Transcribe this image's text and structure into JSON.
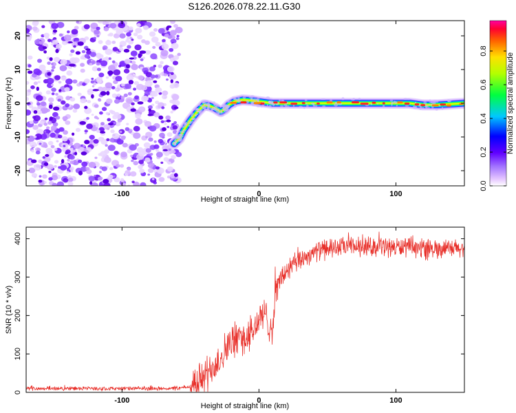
{
  "title": "S126.2026.078.22.11.G30",
  "chart_data": [
    {
      "id": "spectrogram",
      "type": "heatmap",
      "xlabel": "Height of straight line (km)",
      "ylabel": "Frequency (Hz)",
      "xlim": [
        -170,
        150
      ],
      "ylim": [
        -24.5,
        24.5
      ],
      "xticks": [
        -100,
        0,
        100
      ],
      "yticks": [
        -20,
        -10,
        0,
        10,
        20
      ],
      "noise_region_x": [
        -170,
        -58
      ],
      "ridge": {
        "x": [
          -62,
          -58,
          -55,
          -50,
          -45,
          -40,
          -36,
          -32,
          -28,
          -25,
          -22,
          -18,
          -12,
          -5,
          0,
          10,
          30,
          60,
          90,
          110,
          120,
          130,
          150
        ],
        "freq": [
          -12,
          -10.5,
          -8,
          -5,
          -2.5,
          -0.5,
          -0.8,
          -1.5,
          -2.5,
          -1.8,
          -0.5,
          0.5,
          1.0,
          0.8,
          0.5,
          0,
          0,
          0,
          0,
          0,
          -0.5,
          -0.5,
          0
        ]
      }
    },
    {
      "id": "snr",
      "type": "line",
      "xlabel": "Height of straight line (km)",
      "ylabel": "SNR (10 * v/v)",
      "xlim": [
        -170,
        150
      ],
      "ylim": [
        0,
        430
      ],
      "xticks": [
        -100,
        0,
        100
      ],
      "yticks": [
        0,
        100,
        200,
        300,
        400
      ],
      "series": [
        {
          "name": "SNR",
          "color": "#e8302a",
          "x": [
            -170,
            -60,
            -50,
            -40,
            -35,
            -30,
            -25,
            -20,
            -15,
            -10,
            -5,
            0,
            5,
            10,
            12,
            15,
            20,
            25,
            30,
            40,
            50,
            60,
            80,
            100,
            120,
            140,
            150
          ],
          "values": [
            10,
            10,
            15,
            40,
            65,
            80,
            110,
            130,
            145,
            140,
            155,
            190,
            200,
            160,
            260,
            290,
            315,
            330,
            345,
            365,
            375,
            378,
            380,
            378,
            376,
            372,
            375
          ]
        }
      ]
    }
  ],
  "colorbar": {
    "label": "Normalized spectral amplitude",
    "ticks": [
      "0.0",
      "0.2",
      "0.4",
      "0.6",
      "0.8"
    ],
    "tick_values": [
      0.0,
      0.2,
      0.4,
      0.6,
      0.8
    ],
    "range": [
      0.0,
      0.98
    ]
  }
}
